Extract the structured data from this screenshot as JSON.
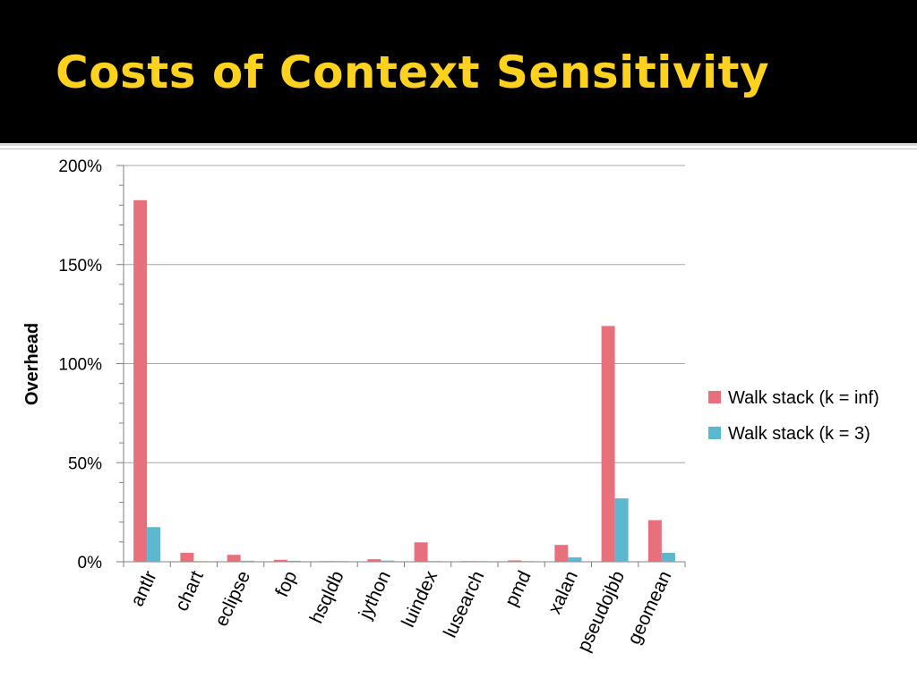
{
  "slide": {
    "title": "Costs of Context Sensitivity",
    "title_color": "#ffd21f",
    "background_header": "#000000"
  },
  "chart_data": {
    "type": "bar",
    "ylabel": "Overhead",
    "xlabel": "",
    "ylim": [
      0,
      200
    ],
    "yticks": [
      0,
      50,
      100,
      150,
      200
    ],
    "ytick_labels": [
      "0%",
      "50%",
      "100%",
      "150%",
      "200%"
    ],
    "grid": true,
    "legend_position": "right",
    "categories": [
      "antlr",
      "chart",
      "eclipse",
      "fop",
      "hsqldb",
      "jython",
      "luindex",
      "lusearch",
      "pmd",
      "xalan",
      "pseudojbb",
      "geomean"
    ],
    "series": [
      {
        "name": "Walk stack (k = inf)",
        "color": "#e8707c",
        "values": [
          182.5,
          4.5,
          3.5,
          1,
          0.3,
          1.3,
          9.8,
          0.3,
          0.7,
          8.5,
          119,
          21
        ]
      },
      {
        "name": "Walk stack (k = 3)",
        "color": "#5bb8cf",
        "values": [
          17.5,
          0.3,
          0.5,
          0.5,
          0.2,
          0.6,
          0,
          0.1,
          0.3,
          2.2,
          32,
          4.5
        ]
      }
    ]
  }
}
